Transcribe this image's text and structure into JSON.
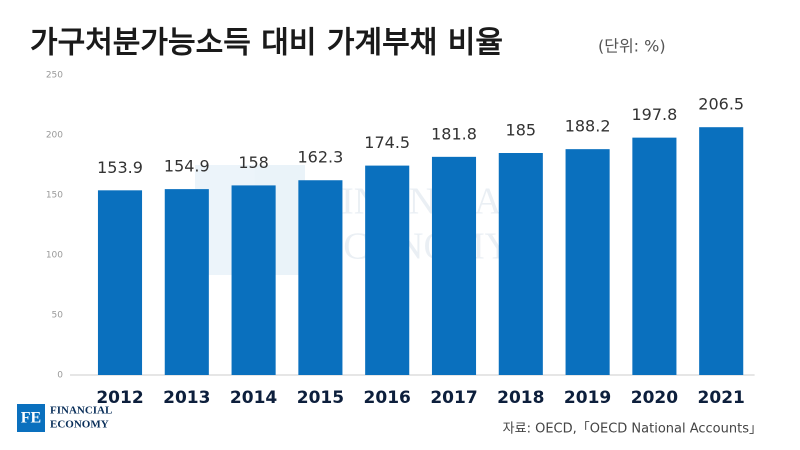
{
  "chart_data": {
    "type": "bar",
    "title": "가구처분가능소득 대비 가계부채 비율",
    "subtitle": "(단위: %)",
    "categories": [
      "2012",
      "2013",
      "2014",
      "2015",
      "2016",
      "2017",
      "2018",
      "2019",
      "2020",
      "2021"
    ],
    "values": [
      153.9,
      154.9,
      158,
      162.3,
      174.5,
      181.8,
      185,
      188.2,
      197.8,
      206.5
    ],
    "color": "#0a70be",
    "ylim": [
      0,
      250
    ],
    "yticks": [
      0,
      50,
      100,
      150,
      200,
      250
    ],
    "grid": false,
    "source": "자료: OECD,「OECD National Accounts」",
    "logo": {
      "mark": "FE",
      "lines": [
        "FINANCIAL",
        "ECONOMY"
      ]
    }
  }
}
